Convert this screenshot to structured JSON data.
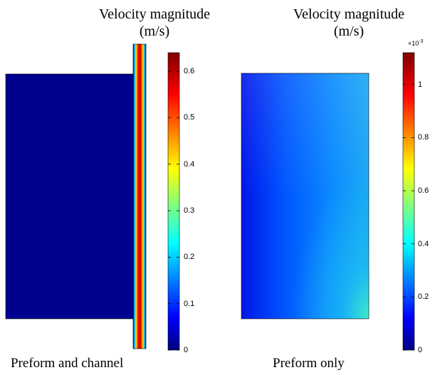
{
  "panels": [
    {
      "title_line1": "Velocity magnitude",
      "title_line2": "(m/s)",
      "caption": "Preform and channel",
      "colorbar": {
        "min": 0,
        "max": 0.64,
        "ticks": [
          "0",
          "0.1",
          "0.2",
          "0.3",
          "0.4",
          "0.5",
          "0.6"
        ],
        "exponent_label": ""
      }
    },
    {
      "title_line1": "Velocity magnitude",
      "title_line2": "(m/s)",
      "caption": "Preform only",
      "colorbar": {
        "min": 0,
        "max": 1.12,
        "ticks": [
          "0",
          "0.2",
          "0.4",
          "0.6",
          "0.8",
          "1"
        ],
        "exponent_base": "×10",
        "exponent_power": "-3"
      }
    }
  ],
  "colormap": "jet",
  "colors": {
    "jet": [
      "#000080",
      "#0000ff",
      "#00ffff",
      "#ffff00",
      "#ff0000",
      "#800000"
    ]
  }
}
